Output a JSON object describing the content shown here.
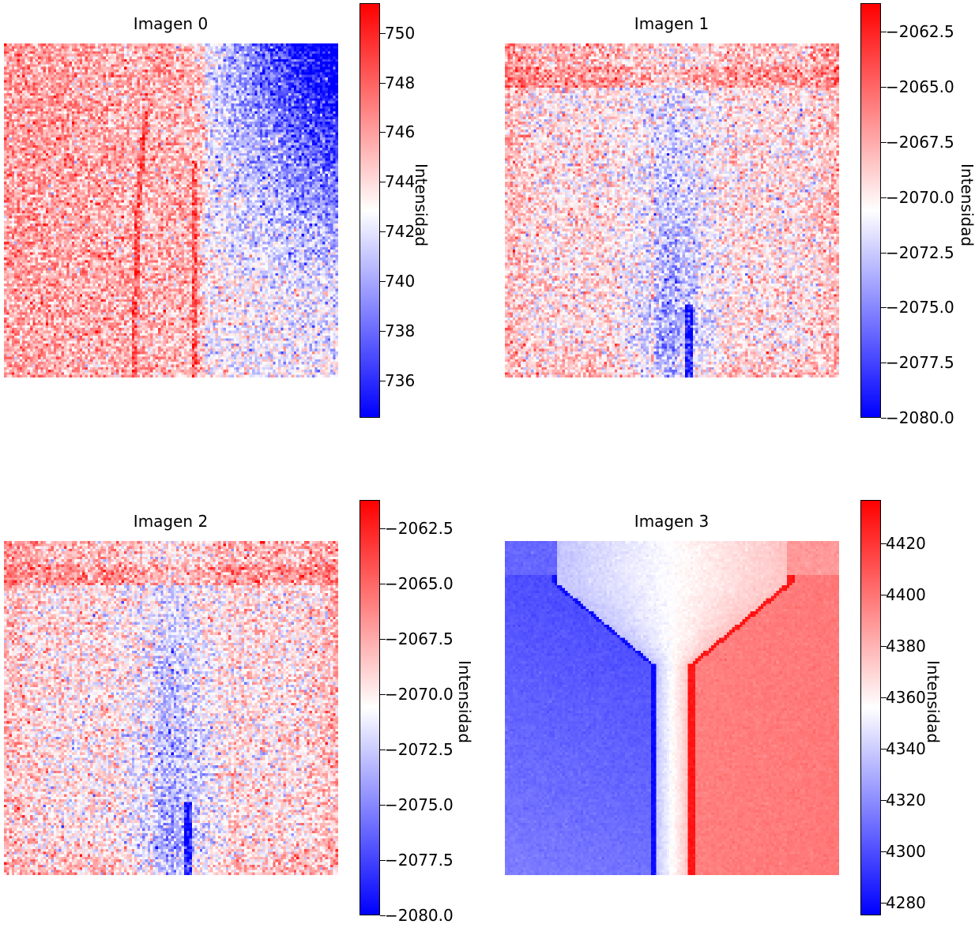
{
  "chart_data": [
    {
      "type": "heatmap",
      "title": "Imagen 0",
      "colorbar_label": "Intensidad",
      "colormap": "bwr",
      "vmin": 734.5,
      "vmax": 751.2,
      "ticks": [
        736,
        738,
        740,
        742,
        744,
        746,
        748,
        750
      ],
      "tick_labels": [
        "736",
        "738",
        "740",
        "742",
        "744",
        "746",
        "748",
        "750"
      ],
      "grid_size": 128,
      "pattern": "left region warm (~746), upper-right region cold (~738), faint red vertical lines near columns 0.40 and 0.57"
    },
    {
      "type": "heatmap",
      "title": "Imagen 1",
      "colorbar_label": "Intensidad",
      "colormap": "bwr",
      "vmin": -2080.0,
      "vmax": -2061.2,
      "ticks": [
        -2080.0,
        -2077.5,
        -2075.0,
        -2072.5,
        -2070.0,
        -2067.5,
        -2065.0,
        -2062.5
      ],
      "tick_labels": [
        "−2080.0",
        "−2077.5",
        "−2075.0",
        "−2072.5",
        "−2070.0",
        "−2067.5",
        "−2065.0",
        "−2062.5"
      ],
      "grid_size": 128,
      "pattern": "red band near top, mild red periphery, cold blue column right of center, thin red line near column 0.44"
    },
    {
      "type": "heatmap",
      "title": "Imagen 2",
      "colorbar_label": "Intensidad",
      "colormap": "bwr",
      "vmin": -2080.0,
      "vmax": -2061.2,
      "ticks": [
        -2080.0,
        -2077.5,
        -2075.0,
        -2072.5,
        -2070.0,
        -2067.5,
        -2065.0,
        -2062.5
      ],
      "tick_labels": [
        "−2080.0",
        "−2077.5",
        "−2075.0",
        "−2072.5",
        "−2070.0",
        "−2067.5",
        "−2065.0",
        "−2062.5"
      ],
      "grid_size": 128,
      "pattern": "same as Imagen 1"
    },
    {
      "type": "heatmap",
      "title": "Imagen 3",
      "colorbar_label": "Intensidad",
      "colormap": "bwr",
      "vmin": 4275,
      "vmax": 4437,
      "ticks": [
        4280,
        4300,
        4320,
        4340,
        4360,
        4380,
        4400,
        4420
      ],
      "tick_labels": [
        "4280",
        "4300",
        "4320",
        "4340",
        "4360",
        "4380",
        "4400",
        "4420"
      ],
      "grid_size": 128,
      "pattern": "smooth: left half blue (~4300), right half red (~4395), white central funnel narrowing downward"
    }
  ]
}
